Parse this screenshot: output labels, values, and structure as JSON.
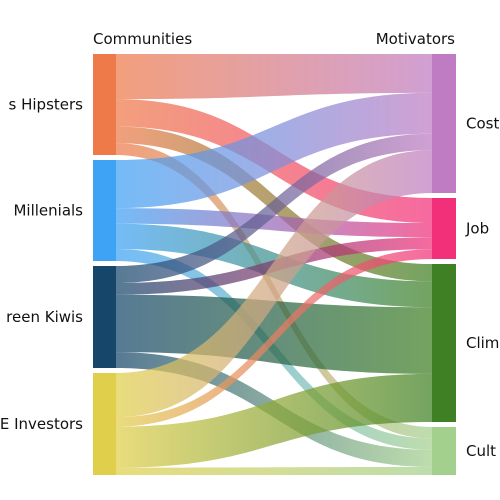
{
  "chart_data": {
    "type": "sankey",
    "left_header": "Communities",
    "right_header": "Motivators",
    "sources": [
      {
        "label": "Hipsters",
        "full_label": "s Hipsters",
        "color": "#ee7a4a"
      },
      {
        "label": "Millenials",
        "full_label": "Millenials",
        "color": "#3ea2f5"
      },
      {
        "label": "Green Kiwis",
        "full_label": "reen Kiwis",
        "color": "#16476b"
      },
      {
        "label": "Investors",
        "full_label": "E Investors",
        "color": "#e0cf4a"
      }
    ],
    "targets": [
      {
        "label": "Cost",
        "full_label": "Cost",
        "color": "#bf7cc2"
      },
      {
        "label": "Job",
        "full_label": "Job",
        "color": "#f2307a"
      },
      {
        "label": "Climate",
        "full_label": "Clim",
        "color": "#3e8023"
      },
      {
        "label": "Culture",
        "full_label": "Cult",
        "color": "#a4d08e"
      }
    ],
    "flows": [
      {
        "source": "Hipsters",
        "target": "Cost",
        "value": 3.8
      },
      {
        "source": "Hipsters",
        "target": "Job",
        "value": 2.3
      },
      {
        "source": "Hipsters",
        "target": "Climate",
        "value": 1.4
      },
      {
        "source": "Hipsters",
        "target": "Culture",
        "value": 1.0
      },
      {
        "source": "Millenials",
        "target": "Cost",
        "value": 4.0
      },
      {
        "source": "Millenials",
        "target": "Job",
        "value": 1.3
      },
      {
        "source": "Millenials",
        "target": "Climate",
        "value": 2.1
      },
      {
        "source": "Millenials",
        "target": "Culture",
        "value": 1.0
      },
      {
        "source": "Green Kiwis",
        "target": "Cost",
        "value": 1.6
      },
      {
        "source": "Green Kiwis",
        "target": "Job",
        "value": 1.1
      },
      {
        "source": "Green Kiwis",
        "target": "Climate",
        "value": 5.4
      },
      {
        "source": "Green Kiwis",
        "target": "Culture",
        "value": 1.5
      },
      {
        "source": "Investors",
        "target": "Cost",
        "value": 4.2
      },
      {
        "source": "Investors",
        "target": "Job",
        "value": 0.9
      },
      {
        "source": "Investors",
        "target": "Climate",
        "value": 3.9
      },
      {
        "source": "Investors",
        "target": "Culture",
        "value": 0.7
      }
    ]
  }
}
